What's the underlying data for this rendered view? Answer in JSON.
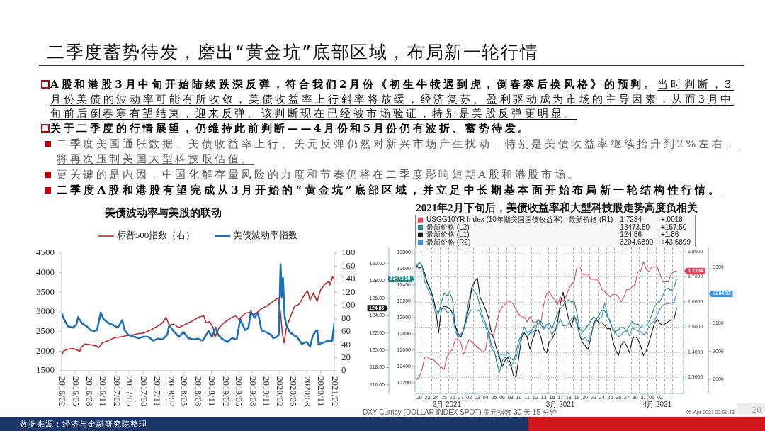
{
  "chart_data": [
    {
      "type": "other",
      "title": "二季度蓄势待发，磨出“黄金坑”底部区域，布局新一轮行情",
      "annotations": [
        "A股和港股3月中旬开始陆续跌深反弹，符合我们2月份《初生牛犊遇到虎，倒春寒后换风格》的预判。",
        "当时判断，3月份美债的波动率可能有所收敛，美债收益率上行斜率将放缓，经济复苏、盈利驱动成为市场的主导因素，从而3月中旬前后倒春寒有望结束，迎来反弹。该判断现在已经被市场验证，特别是美股反弹更明显。",
        "关于二季度的行情展望，仍维持此前判断——4月份和5月份仍有波折、蓄势待发。",
        "二季度美国通胀数据、美债收益率上行、美元反弹仍然对新兴市场产生扰动，",
        "特别是美债收益率继续抬升到2%左右，将再次压制美国大型科技股估值。",
        "更关键的是内因，中国化解存量风险的力度和节奏仍将在二季度影响短期A股和港股市场。",
        "二季度A股和港股有望完成从3月开始的“黄金坑”底部区域，并立足中长期基本面开始布局新一轮结构性行情。",
        "数据来源：经济与金融研究院整理",
        "20"
      ]
    },
    {
      "type": "line",
      "title": "美债波动率与美股的联动",
      "series": [
        {
          "name": "标普500指数（右）",
          "color": "#c0282d",
          "x": [
            "2016-02-01",
            "2016-02-13",
            "2016-03-15",
            "2016-04-16",
            "2016-06-02",
            "2016-06-10",
            "2016-07-04",
            "2016-08-05",
            "2016-09-22",
            "2016-10-07",
            "2016-10-31",
            "2016-12-10",
            "2017-01-26",
            "2017-02-27",
            "2017-04-14",
            "2017-06-01",
            "2017-07-02",
            "2017-08-03",
            "2017-09-20",
            "2017-11-07",
            "2017-12-08",
            "2018-01-01",
            "2018-01-22",
            "2018-02-18",
            "2018-03-27",
            "2018-04-28",
            "2018-05-30",
            "2018-06-30",
            "2018-08-10",
            "2018-09-10",
            "2018-09-26",
            "2018-10-19",
            "2018-11-13",
            "2018-11-24",
            "2018-12-22",
            "2019-01-23",
            "2019-03-10",
            "2019-04-11",
            "2019-05-04",
            "2019-06-13",
            "2019-07-14",
            "2019-08-08",
            "2019-09-01",
            "2019-10-02",
            "2019-11-03",
            "2019-12-20",
            "2020-01-21",
            "2020-02-07",
            "2020-02-18",
            "2020-03-01",
            "2020-03-16",
            "2020-04-09",
            "2020-05-10",
            "2020-06-11",
            "2020-07-13",
            "2020-08-06",
            "2020-08-22",
            "2020-09-15",
            "2020-10-09",
            "2020-11-02",
            "2020-12-03",
            "2020-12-27",
            "2021-01-04",
            "2021-01-20",
            "2021-02-01"
          ],
          "values": [
            1890,
            2000,
            2050,
            2070,
            2000,
            2090,
            2180,
            2170,
            2130,
            2090,
            2210,
            2270,
            2350,
            2360,
            2400,
            2420,
            2450,
            2460,
            2540,
            2640,
            2720,
            2860,
            2660,
            2690,
            2600,
            2660,
            2720,
            2780,
            2870,
            2900,
            2720,
            2750,
            2600,
            2360,
            2600,
            2720,
            2840,
            2900,
            2810,
            2960,
            2990,
            2920,
            2980,
            3080,
            3140,
            3270,
            3360,
            2960,
            2480,
            2210,
            2570,
            2840,
            3140,
            3200,
            3420,
            3540,
            3300,
            3480,
            3270,
            3570,
            3720,
            3780,
            3690,
            3900,
            3840
          ]
        },
        {
          "name": "美债波动率指数",
          "color": "#1f6fb5",
          "axis": "y2",
          "x": [
            "2016-02-01",
            "2016-02-21",
            "2016-03-15",
            "2016-04-16",
            "2016-05-09",
            "2016-05-22",
            "2016-06-18",
            "2016-07-19",
            "2016-08-13",
            "2016-09-06",
            "2016-09-25",
            "2016-10-20",
            "2016-11-08",
            "2016-12-10",
            "2017-01-10",
            "2017-02-11",
            "2017-03-13",
            "2017-03-29",
            "2017-04-22",
            "2017-06-01",
            "2017-07-02",
            "2017-08-03",
            "2017-09-04",
            "2017-10-06",
            "2017-11-07",
            "2017-12-08",
            "2018-01-09",
            "2018-01-22",
            "2018-02-18",
            "2018-03-28",
            "2018-04-28",
            "2018-05-30",
            "2018-07-01",
            "2018-08-02",
            "2018-09-03",
            "2018-09-27",
            "2018-10-12",
            "2018-11-05",
            "2018-11-29",
            "2018-12-15",
            "2019-01-16",
            "2019-02-17",
            "2019-03-18",
            "2019-04-19",
            "2019-05-13",
            "2019-06-14",
            "2019-07-07",
            "2019-07-23",
            "2019-08-16",
            "2019-09-09",
            "2019-10-02",
            "2019-11-03",
            "2019-12-05",
            "2019-12-21",
            "2020-01-14",
            "2020-01-26",
            "2020-02-07",
            "2020-02-15",
            "2020-02-23",
            "2020-03-05",
            "2020-03-16",
            "2020-04-09",
            "2020-05-03",
            "2020-05-27",
            "2020-06-28",
            "2020-07-30",
            "2020-08-23",
            "2020-09-08",
            "2020-09-24",
            "2020-10-10",
            "2020-10-18",
            "2020-11-19",
            "2020-12-20",
            "2021-01-18",
            "2021-02-01"
          ],
          "values": [
            88,
            77,
            68,
            66,
            70,
            82,
            72,
            68,
            62,
            61,
            62,
            89,
            79,
            73,
            70,
            66,
            77,
            62,
            55,
            52,
            50,
            52,
            52,
            46,
            49,
            48,
            55,
            70,
            61,
            52,
            59,
            50,
            48,
            49,
            46,
            55,
            61,
            52,
            66,
            55,
            48,
            44,
            50,
            48,
            79,
            62,
            66,
            91,
            81,
            88,
            62,
            59,
            55,
            50,
            52,
            55,
            163,
            113,
            142,
            84,
            70,
            59,
            55,
            52,
            41,
            44,
            37,
            52,
            59,
            62,
            41,
            43,
            46,
            46,
            73
          ]
        }
      ],
      "xlim": [
        "2016-02",
        "2021-02"
      ],
      "xticks": [
        {
          "value": "2016-02",
          "label": "2016/02"
        },
        {
          "value": "2016-05",
          "label": "2016/05"
        },
        {
          "value": "2016-08",
          "label": "2016/08"
        },
        {
          "value": "2016-11",
          "label": "2016/11"
        },
        {
          "value": "2017-02",
          "label": "2017/02"
        },
        {
          "value": "2017-05",
          "label": "2017/05"
        },
        {
          "value": "2017-08",
          "label": "2017/08"
        },
        {
          "value": "2017-11",
          "label": "2017/11"
        },
        {
          "value": "2018-02",
          "label": "2018/02"
        },
        {
          "value": "2018-05",
          "label": "2018/05"
        },
        {
          "value": "2018-08",
          "label": "2018/08"
        },
        {
          "value": "2018-11",
          "label": "2018/11"
        },
        {
          "value": "2019-02",
          "label": "2019/02"
        },
        {
          "value": "2019-05",
          "label": "2019/05"
        },
        {
          "value": "2019-08",
          "label": "2019/08"
        },
        {
          "value": "2019-11",
          "label": "2019/11"
        },
        {
          "value": "2020-02",
          "label": "2020/02"
        },
        {
          "value": "2020-05",
          "label": "2020/05"
        },
        {
          "value": "2020-08",
          "label": "2020/08"
        },
        {
          "value": "2020-11",
          "label": "2020/11"
        },
        {
          "value": "2021-02",
          "label": "2021/02"
        }
      ],
      "ylim": [
        1500,
        4500
      ],
      "yticks": [
        1500,
        2000,
        2500,
        3000,
        3500,
        4000,
        4500
      ],
      "y2lim": [
        0,
        180
      ],
      "y2ticks": [
        0,
        20,
        40,
        60,
        80,
        100,
        120,
        140,
        160,
        180
      ],
      "legend": "top"
    },
    {
      "type": "line",
      "title": "2021年2月下旬后，美债收益率和大型科技股走势高度负相关",
      "categories": [
        null,
        "20",
        null,
        null,
        "23",
        null,
        null,
        "24",
        null,
        null,
        "25",
        null,
        null,
        "26",
        null,
        null,
        "27",
        null,
        null,
        "02",
        null,
        null,
        "03",
        null,
        null,
        "04",
        null,
        null,
        "05",
        null,
        null,
        "06",
        null,
        null,
        "09",
        null,
        null,
        "10",
        null,
        null,
        "11",
        null,
        null,
        "12",
        null,
        null,
        "13",
        null,
        null,
        "16",
        null,
        null,
        "17",
        null,
        null,
        "18",
        null,
        null,
        "19",
        null,
        null,
        "20",
        null,
        null,
        "23",
        null,
        null,
        "24",
        null,
        null,
        "25",
        null,
        null,
        "26",
        null,
        null,
        "27",
        null,
        null,
        "30",
        null,
        null,
        "31",
        null,
        null,
        "01",
        null,
        null,
        "02",
        null,
        null,
        null,
        null,
        null,
        null,
        null,
        null
      ],
      "series": [
        {
          "name": "USGG10YR Index (10年期美国国债收益率) - 最新价格 (R1)",
          "color": "#e34a62",
          "values": [
            1.29,
            1.3,
            1.33,
            1.38,
            1.38,
            1.37,
            1.37,
            1.36,
            1.35,
            1.34,
            1.33,
            1.38,
            1.4,
            1.41,
            1.45,
            1.45,
            1.44,
            1.39,
            1.42,
            1.45,
            1.44,
            1.43,
            1.42,
            1.41,
            1.4,
            1.41,
            1.48,
            1.47,
            1.47,
            1.52,
            1.56,
            1.58,
            1.59,
            1.6,
            1.6,
            1.59,
            1.57,
            1.55,
            1.54,
            1.54,
            1.52,
            1.54,
            1.52,
            1.52,
            1.51,
            1.52,
            1.59,
            1.63,
            1.64,
            1.62,
            1.61,
            1.59,
            1.62,
            1.6,
            1.62,
            1.65,
            1.67,
            1.68,
            1.74,
            1.74,
            1.71,
            1.71,
            1.71,
            1.69,
            1.69,
            1.69,
            1.68,
            1.65,
            1.64,
            1.63,
            1.62,
            1.63,
            1.63,
            1.62,
            1.6,
            1.62,
            1.65,
            1.65,
            1.66,
            1.67,
            1.72,
            1.72,
            1.76,
            1.73,
            1.72,
            1.74,
            1.74,
            1.74,
            1.71,
            1.68,
            1.68,
            1.68,
            1.71,
            1.72,
            1.7234,
            null,
            null
          ]
        },
        {
          "name": "最新价格 (L2)",
          "color": "#1f8f86",
          "axis": "y2",
          "values": [
            13610,
            13680,
            13640,
            13500,
            13420,
            13330,
            13250,
            13100,
            13050,
            13180,
            13300,
            13270,
            13310,
            13220,
            12910,
            12760,
            12790,
            12840,
            13030,
            13220,
            13370,
            13320,
            13270,
            13130,
            13010,
            12930,
            12840,
            12670,
            12620,
            12450,
            12330,
            12470,
            12520,
            12470,
            12400,
            12450,
            12570,
            12720,
            12790,
            12810,
            12760,
            12810,
            12860,
            12930,
            12980,
            12910,
            12860,
            12910,
            12930,
            12860,
            12960,
            13050,
            13110,
            13150,
            13200,
            13220,
            13190,
            13200,
            13050,
            12860,
            12820,
            12860,
            12910,
            12960,
            13010,
            12980,
            13030,
            13090,
            13080,
            13010,
            12960,
            12840,
            12830,
            12850,
            12880,
            12870,
            12840,
            12910,
            12950,
            12910,
            12920,
            12880,
            12910,
            12910,
            12950,
            13030,
            13130,
            13180,
            13200,
            13270,
            13350,
            13360,
            13330,
            13360,
            13473.5,
            null,
            null
          ]
        },
        {
          "name": "最新价格 (L1)",
          "color": "#1a1a1a",
          "axis": "y3",
          "values": [
            129.8,
            129.5,
            129.7,
            128.9,
            127.7,
            127.1,
            126.1,
            124.7,
            122.0,
            124.7,
            125.1,
            125.0,
            124.8,
            124.3,
            122.9,
            122.0,
            121.5,
            122.4,
            123.6,
            125.0,
            127.2,
            127.9,
            128.4,
            126.1,
            125.5,
            124.7,
            123.8,
            122.2,
            121.3,
            120.1,
            119.2,
            118.1,
            118.8,
            119.2,
            118.5,
            117.1,
            116.9,
            119.2,
            121.5,
            122.0,
            121.5,
            120.1,
            121.3,
            122.2,
            122.4,
            121.5,
            120.1,
            119.7,
            121.0,
            121.3,
            122.0,
            123.3,
            125.4,
            126.7,
            125.0,
            123.6,
            122.7,
            124.0,
            123.3,
            121.7,
            120.9,
            120.5,
            120.1,
            121.4,
            123.1,
            123.6,
            123.1,
            123.2,
            122.9,
            122.5,
            122.5,
            121.0,
            120.0,
            119.4,
            120.6,
            121.0,
            120.5,
            119.7,
            121.3,
            121.6,
            121.3,
            120.5,
            119.4,
            119.9,
            120.9,
            122.0,
            123.1,
            123.6,
            123.1,
            122.9,
            123.1,
            123.3,
            123.5,
            123.5,
            124.86,
            null,
            null
          ]
        }
      ],
      "ylim": [
        1.235,
        1.817
      ],
      "yticks": [
        {
          "value": 1.3,
          "label": "1.3000"
        },
        {
          "value": 1.4,
          "label": "1.4000"
        },
        {
          "value": 1.5,
          "label": "1.5000"
        },
        {
          "value": 1.6,
          "label": "1.6000"
        },
        {
          "value": 1.7,
          "label": "1.7000"
        },
        {
          "value": 1.8,
          "label": "1.8000"
        }
      ],
      "y2lim": [
        12070,
        13860
      ],
      "y2ticks": [
        12200,
        12400,
        12600,
        12800,
        13000,
        13200,
        13400,
        13600,
        13800
      ],
      "y3lim": [
        115,
        131.9
      ],
      "y3ticks": [
        {
          "value": 116,
          "label": "116.00"
        },
        {
          "value": 118,
          "label": "118.00"
        },
        {
          "value": 120,
          "label": "120.00"
        },
        {
          "value": 122,
          "label": "122.00"
        },
        {
          "value": 124,
          "label": "124.00"
        },
        {
          "value": 126,
          "label": "126.00"
        },
        {
          "value": 128,
          "label": "128.00"
        },
        {
          "value": 130,
          "label": "130.00"
        }
      ],
      "grid": true,
      "legend": "top left",
      "annotations": [
        "1.7234",
        "+.0018",
        "13473.50",
        "+157.50",
        "124.86",
        "+1.86",
        "1.7234",
        "13473.50",
        "124.86",
        "DXY Curncy (DOLLAR INDEX SPOT) 美元指数 30 天 15 分钟"
      ]
    },
    {
      "type": "line",
      "categories": [
        null,
        null,
        null,
        null,
        null,
        null,
        null,
        null,
        null,
        null,
        null,
        "2月 2021",
        null,
        null,
        null,
        null,
        null,
        null,
        null,
        null,
        null,
        null,
        null,
        null,
        null,
        null,
        null,
        null,
        null,
        null,
        null,
        null,
        null,
        null,
        null,
        null,
        null,
        null,
        null,
        null,
        null,
        null,
        null,
        null,
        null,
        null,
        null,
        null,
        null,
        null,
        null,
        null,
        "3月 2021",
        null,
        null,
        null,
        null,
        null,
        null,
        null,
        null,
        null,
        null,
        null,
        null,
        null,
        null,
        null,
        null,
        null,
        null,
        null,
        null,
        null,
        null,
        null,
        null,
        null,
        null,
        null,
        null,
        null,
        null,
        null,
        null,
        null,
        null,
        "4月 2021",
        null,
        null,
        null,
        null,
        null,
        null,
        null,
        null,
        null,
        null,
        null,
        null,
        null,
        null,
        null,
        null,
        null,
        null
      ],
      "series": [
        {
          "name": "最新价格 (R2)",
          "color": "#3d8fe0",
          "values": [
            3306,
            3316,
            3306,
            3246,
            3225,
            3204,
            3175,
            3130,
            3140,
            3154,
            3154,
            3140,
            3137,
            3137,
            3073,
            3049,
            3059,
            3077,
            3105,
            3137,
            3147,
            3147,
            3147,
            3140,
            3105,
            3091,
            3052,
            3013,
            2996,
            2978,
            2985,
            2989,
            2989,
            2996,
            2975,
            2968,
            2975,
            3017,
            3059,
            3087,
            3066,
            3073,
            3066,
            3077,
            3112,
            3105,
            3087,
            3084,
            3080,
            3059,
            3077,
            3094,
            3115,
            3091,
            3091,
            3098,
            3115,
            3126,
            3094,
            3056,
            3042,
            3049,
            3035,
            3059,
            3091,
            3108,
            3115,
            3123,
            3172,
            3130,
            3101,
            3080,
            3063,
            3052,
            3059,
            3070,
            3073,
            3056,
            3084,
            3077,
            3073,
            3070,
            3059,
            3066,
            3091,
            3101,
            3108,
            3130,
            3151,
            3165,
            3168,
            3170,
            3172,
            3175,
            3204.53,
            null,
            null,
            null,
            null,
            null,
            null,
            null,
            null,
            null,
            null,
            null
          ]
        }
      ],
      "ylim": [
        2850,
        3370
      ],
      "yticks": [
        2900,
        3000,
        3100,
        3300
      ],
      "legend": "top left",
      "annotations": [
        "3204.6899",
        "+43.6899",
        "3204.53",
        "05-Apr-2021 22:09:13"
      ]
    }
  ]
}
